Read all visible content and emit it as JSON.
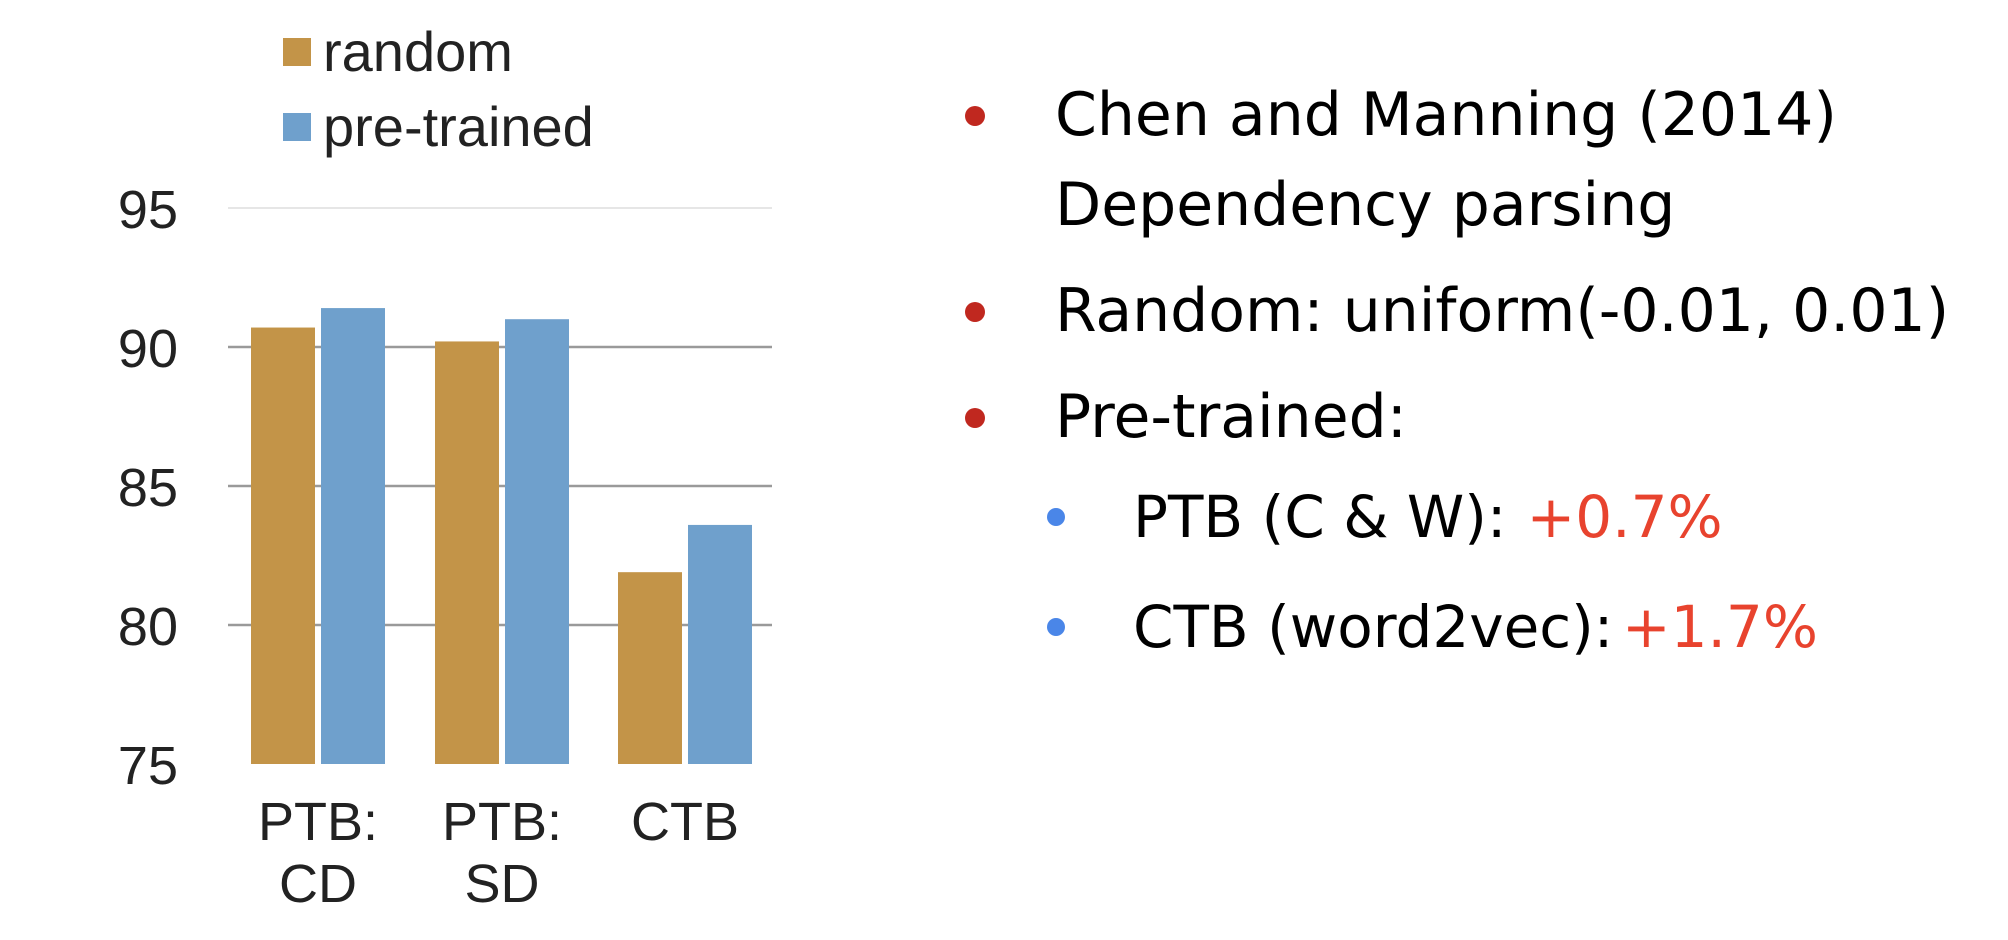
{
  "chart_data": {
    "type": "bar",
    "categories": [
      [
        "PTB:",
        "CD"
      ],
      [
        "PTB:",
        "SD"
      ],
      [
        "CTB"
      ]
    ],
    "series": [
      {
        "name": "random",
        "values": [
          90.7,
          90.2,
          81.9
        ],
        "color": "#c39448"
      },
      {
        "name": "pre-trained",
        "values": [
          91.4,
          91.0,
          83.6
        ],
        "color": "#6fa0cc"
      }
    ],
    "ylim": [
      75,
      95
    ],
    "yticks": [
      "75",
      "80",
      "85",
      "90",
      "95"
    ],
    "xlabel": "",
    "ylabel": "",
    "title": "",
    "grid": true,
    "legend_position": "top"
  },
  "notes": {
    "bullet_color": "#c0281f",
    "sub_bullet_color": "#4a86e8",
    "highlight_color": "#e8432e",
    "items": [
      {
        "lines": [
          "Chen and Manning (2014)",
          "Dependency parsing"
        ]
      },
      {
        "text": "Random:  uniform(-0.01, 0.01)"
      },
      {
        "text": "Pre-trained:"
      }
    ],
    "sub_items": [
      {
        "text": "PTB (C & W):",
        "gain": "+0.7%"
      },
      {
        "text": "CTB (word2vec):",
        "gain": "+1.7%"
      }
    ]
  }
}
